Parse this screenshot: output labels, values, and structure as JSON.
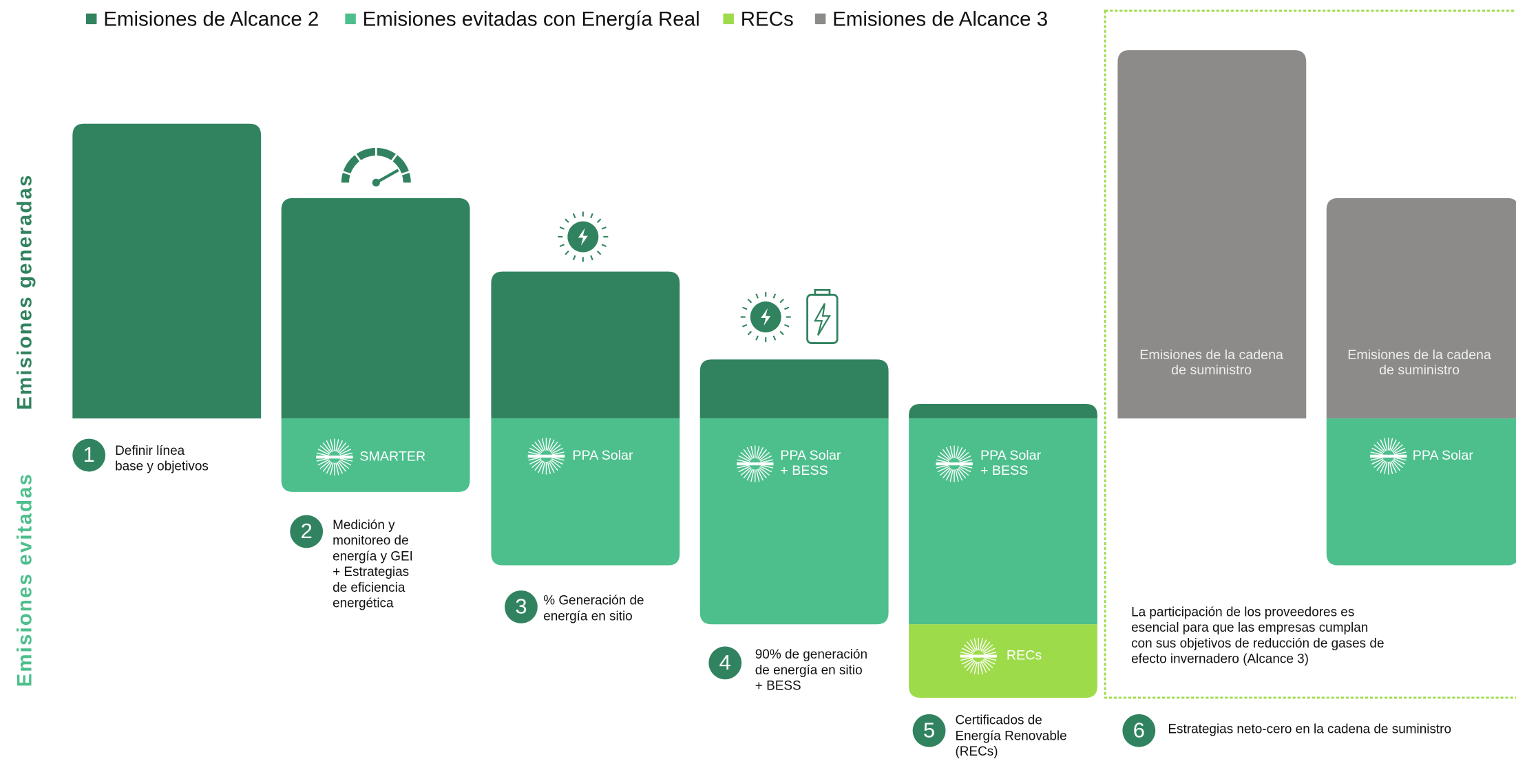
{
  "legend": [
    {
      "label": "Emisiones de Alcance 2",
      "color": "#31835f"
    },
    {
      "label": "Emisiones evitadas con Energía Real",
      "color": "#4dbf8c"
    },
    {
      "label": "RECs",
      "color": "#9edb4b"
    },
    {
      "label": "Emisiones de Alcance 3",
      "color": "#8c8b89"
    }
  ],
  "axis_labels": {
    "generated": "Emisiones generadas",
    "avoided": "Emisiones evitadas"
  },
  "steps": [
    {
      "number": "1",
      "description": [
        "Definir línea",
        "base y objetivos"
      ]
    },
    {
      "number": "2",
      "description": [
        "Medición y",
        "monitoreo de",
        "energía y GEI",
        "+ Estrategias",
        "de eficiencia",
        "energética"
      ],
      "labels": [
        {
          "lines": [
            "SMARTER"
          ]
        }
      ]
    },
    {
      "number": "3",
      "description": [
        "% Generación de",
        "energía en sitio"
      ],
      "labels": [
        {
          "lines": [
            "PPA Solar"
          ]
        }
      ]
    },
    {
      "number": "4",
      "description": [
        "90% de generación",
        "de energía en sitio",
        "+ BESS"
      ],
      "labels": [
        {
          "lines": [
            "PPA Solar",
            "+ BESS"
          ]
        }
      ]
    },
    {
      "number": "5",
      "description": [
        "Certificados de",
        "Energía Renovable",
        "(RECs)"
      ],
      "labels": [
        {
          "lines": [
            "PPA Solar",
            "+ BESS"
          ]
        },
        {
          "lines": [
            "RECs"
          ]
        }
      ]
    },
    {
      "number": "6",
      "description": [
        "Estrategias neto-cero en la cadena de suministro"
      ],
      "labels": [
        {
          "lines": [
            "Emisiones de la cadena",
            "de suministro"
          ]
        },
        {
          "lines": [
            "Emisiones de la cadena",
            "de suministro"
          ]
        },
        {
          "lines": [
            "PPA Solar"
          ]
        }
      ],
      "note": [
        "La participación de los proveedores es",
        "esencial para que las empresas cumplan",
        "con sus objetivos de reducción de gases de",
        "efecto invernadero (Alcance 3)"
      ]
    }
  ]
}
